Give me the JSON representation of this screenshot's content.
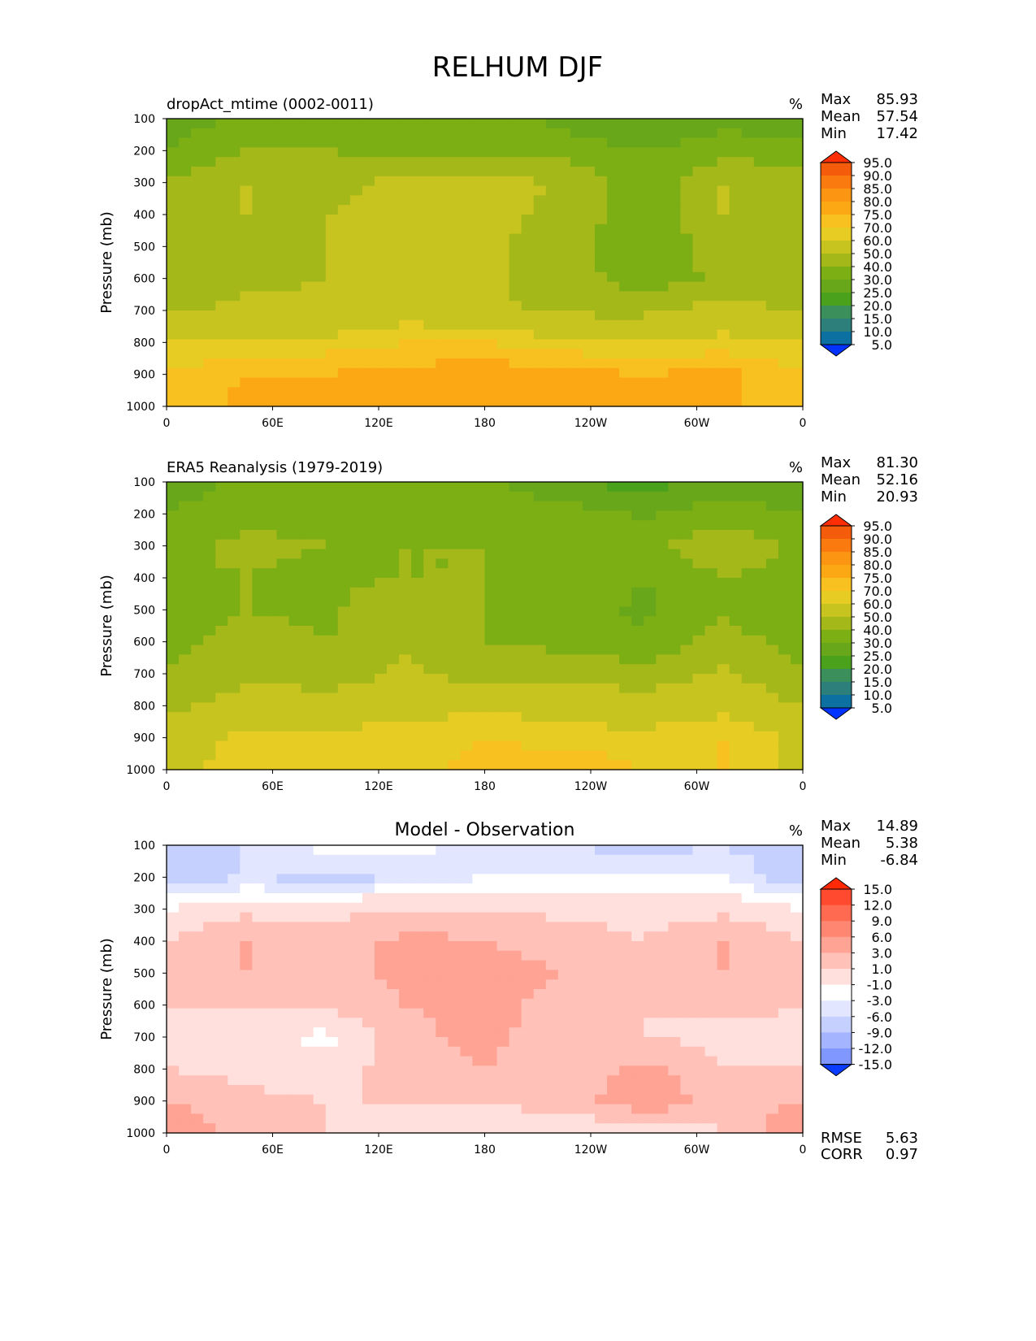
{
  "figure_title": "RELHUM DJF",
  "colors": {
    "main_scale": [
      "#0033ff",
      "#0a5ad8",
      "#0c71a0",
      "#2c7f7a",
      "#3a8f5b",
      "#4aa21c",
      "#68a71a",
      "#7caf14",
      "#a4b819",
      "#c8c41f",
      "#e6cc23",
      "#f8c120",
      "#fca814",
      "#fc9612",
      "#fa7a10",
      "#f45c0c",
      "#ff2e05"
    ],
    "diff_scale": [
      "#0a3cff",
      "#2a5aff",
      "#5a7cff",
      "#7f97ff",
      "#a4b4ff",
      "#c6d0ff",
      "#e2e7ff",
      "#ffffff",
      "#ffe0dc",
      "#ffc1b8",
      "#ffa394",
      "#ff8670",
      "#ff6a50",
      "#ff4a30",
      "#ff2a05"
    ]
  },
  "panels": [
    {
      "id": "model",
      "subtitle_left": "dropAct_mtime (0002-0011)",
      "subtitle_center": "",
      "units": "%",
      "stats": [
        {
          "label": "Max",
          "value": "85.93"
        },
        {
          "label": "Mean",
          "value": "57.54"
        },
        {
          "label": "Min",
          "value": "17.42"
        }
      ],
      "colorbar_labels": [
        "95.0",
        "90.0",
        "85.0",
        "80.0",
        "75.0",
        "70.0",
        "60.0",
        "50.0",
        "40.0",
        "30.0",
        "25.0",
        "20.0",
        "15.0",
        "10.0",
        "5.0"
      ],
      "footer_stats": []
    },
    {
      "id": "obs",
      "subtitle_left": "ERA5 Reanalysis (1979-2019)",
      "subtitle_center": "",
      "units": "%",
      "stats": [
        {
          "label": "Max",
          "value": "81.30"
        },
        {
          "label": "Mean",
          "value": "52.16"
        },
        {
          "label": "Min",
          "value": "20.93"
        }
      ],
      "colorbar_labels": [
        "95.0",
        "90.0",
        "85.0",
        "80.0",
        "75.0",
        "70.0",
        "60.0",
        "50.0",
        "40.0",
        "30.0",
        "25.0",
        "20.0",
        "15.0",
        "10.0",
        "5.0"
      ],
      "footer_stats": []
    },
    {
      "id": "diff",
      "subtitle_left": "",
      "subtitle_center": "Model - Observation",
      "units": "%",
      "stats": [
        {
          "label": "Max",
          "value": "14.89"
        },
        {
          "label": "Mean",
          "value": "5.38"
        },
        {
          "label": "Min",
          "value": "-6.84"
        }
      ],
      "colorbar_labels": [
        "15.0",
        "12.0",
        "9.0",
        "6.0",
        "3.0",
        "1.0",
        "-1.0",
        "-3.0",
        "-6.0",
        "-9.0",
        "-12.0",
        "-15.0"
      ],
      "footer_stats": [
        {
          "label": "RMSE",
          "value": "5.63"
        },
        {
          "label": "CORR",
          "value": "0.97"
        }
      ]
    }
  ],
  "chart_data": [
    {
      "type": "heatmap",
      "title": "dropAct_mtime (0002-0011)",
      "xlabel": "",
      "ylabel": "Pressure (mb)",
      "units": "%",
      "x_ticks": [
        "0",
        "60E",
        "120E",
        "180",
        "120W",
        "60W",
        "0"
      ],
      "y_ticks": [
        "100",
        "200",
        "300",
        "400",
        "500",
        "600",
        "700",
        "800",
        "900",
        "1000"
      ],
      "x_range": [
        0,
        360
      ],
      "y_range": [
        100,
        1000
      ],
      "levels": [
        5,
        10,
        15,
        20,
        25,
        30,
        40,
        50,
        60,
        70,
        75,
        80,
        85,
        90,
        95
      ],
      "x_centers": [
        0,
        45,
        90,
        135,
        180,
        225,
        270,
        315,
        360
      ],
      "y_levels": [
        100,
        200,
        300,
        400,
        500,
        600,
        700,
        800,
        900,
        1000
      ],
      "z": [
        [
          32,
          45,
          48,
          45,
          42,
          38,
          28,
          36,
          32
        ],
        [
          40,
          50,
          50,
          47,
          47,
          45,
          40,
          47,
          45
        ],
        [
          52,
          60,
          58,
          62,
          62,
          60,
          42,
          60,
          52
        ],
        [
          52,
          60,
          60,
          62,
          62,
          58,
          42,
          60,
          52
        ],
        [
          52,
          58,
          60,
          68,
          62,
          56,
          40,
          55,
          52
        ],
        [
          52,
          58,
          60,
          68,
          62,
          55,
          45,
          52,
          50
        ],
        [
          58,
          62,
          62,
          67,
          62,
          58,
          58,
          65,
          58
        ],
        [
          70,
          72,
          72,
          75,
          75,
          72,
          70,
          72,
          70
        ],
        [
          75,
          80,
          80,
          82,
          84,
          82,
          80,
          82,
          75
        ],
        [
          75,
          82,
          82,
          82,
          84,
          82,
          82,
          82,
          75
        ]
      ],
      "stats": {
        "max": 85.93,
        "mean": 57.54,
        "min": 17.42
      }
    },
    {
      "type": "heatmap",
      "title": "ERA5 Reanalysis (1979-2019)",
      "xlabel": "",
      "ylabel": "Pressure (mb)",
      "units": "%",
      "x_ticks": [
        "0",
        "60E",
        "120E",
        "180",
        "120W",
        "60W",
        "0"
      ],
      "y_ticks": [
        "100",
        "200",
        "300",
        "400",
        "500",
        "600",
        "700",
        "800",
        "900",
        "1000"
      ],
      "x_range": [
        0,
        360
      ],
      "y_range": [
        100,
        1000
      ],
      "levels": [
        5,
        10,
        15,
        20,
        25,
        30,
        40,
        50,
        60,
        70,
        75,
        80,
        85,
        90,
        95
      ],
      "x_centers": [
        0,
        45,
        90,
        135,
        180,
        225,
        270,
        315,
        360
      ],
      "y_levels": [
        100,
        200,
        300,
        400,
        500,
        600,
        700,
        800,
        900,
        1000
      ],
      "z": [
        [
          32,
          45,
          45,
          42,
          42,
          32,
          25,
          35,
          32
        ],
        [
          40,
          48,
          48,
          47,
          47,
          45,
          38,
          45,
          40
        ],
        [
          48,
          52,
          50,
          50,
          50,
          50,
          48,
          57,
          48
        ],
        [
          48,
          50,
          48,
          50,
          50,
          45,
          40,
          50,
          45
        ],
        [
          46,
          50,
          48,
          58,
          50,
          45,
          38,
          48,
          40
        ],
        [
          46,
          55,
          50,
          58,
          50,
          48,
          42,
          55,
          45
        ],
        [
          50,
          58,
          55,
          62,
          55,
          55,
          55,
          62,
          52
        ],
        [
          58,
          65,
          65,
          68,
          68,
          68,
          65,
          68,
          60
        ],
        [
          65,
          72,
          72,
          72,
          75,
          72,
          72,
          75,
          68
        ],
        [
          65,
          75,
          75,
          72,
          78,
          80,
          75,
          75,
          68
        ]
      ],
      "stats": {
        "max": 81.3,
        "mean": 52.16,
        "min": 20.93
      }
    },
    {
      "type": "heatmap",
      "title": "Model - Observation",
      "xlabel": "",
      "ylabel": "Pressure (mb)",
      "units": "%",
      "x_ticks": [
        "0",
        "60E",
        "120E",
        "180",
        "120W",
        "60W",
        "0"
      ],
      "y_ticks": [
        "100",
        "200",
        "300",
        "400",
        "500",
        "600",
        "700",
        "800",
        "900",
        "1000"
      ],
      "x_range": [
        0,
        360
      ],
      "y_range": [
        100,
        1000
      ],
      "levels": [
        -15,
        -12,
        -9,
        -6,
        -3,
        -1,
        1,
        3,
        6,
        9,
        12,
        15
      ],
      "x_centers": [
        0,
        45,
        90,
        135,
        180,
        225,
        270,
        315,
        360
      ],
      "y_levels": [
        100,
        200,
        300,
        400,
        500,
        600,
        700,
        800,
        900,
        1000
      ],
      "z": [
        [
          -2,
          -1,
          2,
          2,
          0,
          -1,
          -2,
          -1,
          -3
        ],
        [
          -2,
          -1,
          -2,
          -1,
          1,
          1,
          1,
          1,
          -3
        ],
        [
          3,
          5,
          5,
          6,
          6,
          5,
          5,
          5,
          3
        ],
        [
          6,
          9,
          7,
          10,
          9,
          8,
          6,
          9,
          6
        ],
        [
          6,
          9,
          7,
          10,
          10,
          9,
          6,
          9,
          6
        ],
        [
          6,
          6,
          7,
          9,
          10,
          8,
          6,
          7,
          6
        ],
        [
          5,
          4,
          2,
          8,
          10,
          7,
          6,
          5,
          5
        ],
        [
          6,
          5,
          4,
          8,
          9,
          7,
          10,
          6,
          6
        ],
        [
          9,
          7,
          6,
          6,
          6,
          7,
          12,
          7,
          9
        ],
        [
          12,
          8,
          6,
          5,
          5,
          4,
          3,
          6,
          12
        ]
      ],
      "stats": {
        "max": 14.89,
        "mean": 5.38,
        "min": -6.84,
        "rmse": 5.63,
        "corr": 0.97
      }
    }
  ]
}
